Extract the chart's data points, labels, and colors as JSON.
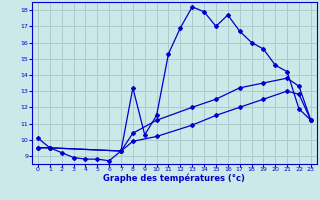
{
  "xlabel": "Graphe des températures (°c)",
  "bg_color": "#cce8e8",
  "grid_color": "#aacccc",
  "line_color": "#0000cc",
  "xlim": [
    -0.5,
    23.5
  ],
  "ylim": [
    8.5,
    18.5
  ],
  "yticks": [
    9,
    10,
    11,
    12,
    13,
    14,
    15,
    16,
    17,
    18
  ],
  "xticks": [
    0,
    1,
    2,
    3,
    4,
    5,
    6,
    7,
    8,
    9,
    10,
    11,
    12,
    13,
    14,
    15,
    16,
    17,
    18,
    19,
    20,
    21,
    22,
    23
  ],
  "line1_x": [
    0,
    1,
    2,
    3,
    4,
    5,
    6,
    7,
    8,
    9,
    10,
    11,
    12,
    13,
    14,
    15,
    16,
    17,
    18,
    19,
    20,
    21,
    22,
    23
  ],
  "line1_y": [
    10.1,
    9.5,
    9.2,
    8.9,
    8.8,
    8.8,
    8.7,
    9.3,
    13.2,
    10.3,
    11.5,
    15.3,
    16.9,
    18.2,
    17.9,
    17.0,
    17.7,
    16.7,
    16.0,
    15.6,
    14.6,
    14.2,
    11.9,
    11.2
  ],
  "line2_x": [
    0,
    1,
    7,
    8,
    10,
    13,
    15,
    17,
    19,
    21,
    22,
    23
  ],
  "line2_y": [
    9.5,
    9.5,
    9.3,
    10.4,
    11.2,
    12.0,
    12.5,
    13.2,
    13.5,
    13.8,
    13.3,
    11.2
  ],
  "line3_x": [
    0,
    1,
    7,
    8,
    10,
    13,
    15,
    17,
    19,
    21,
    22,
    23
  ],
  "line3_y": [
    9.5,
    9.5,
    9.3,
    9.9,
    10.2,
    10.9,
    11.5,
    12.0,
    12.5,
    13.0,
    12.8,
    11.2
  ]
}
